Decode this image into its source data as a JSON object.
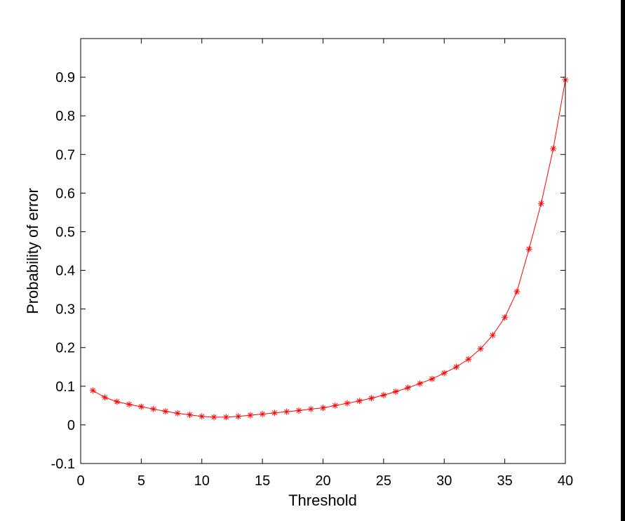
{
  "chart_data": {
    "type": "line",
    "title": "",
    "xlabel": "Threshold",
    "ylabel": "Probability of error",
    "xlim": [
      0,
      40
    ],
    "ylim": [
      -0.1,
      1.0
    ],
    "xticks": [
      0,
      5,
      10,
      15,
      20,
      25,
      30,
      35,
      40
    ],
    "xtick_labels": [
      "0",
      "5",
      "10",
      "15",
      "20",
      "25",
      "30",
      "35",
      "40"
    ],
    "yticks": [
      -0.1,
      0,
      0.1,
      0.2,
      0.3,
      0.4,
      0.5,
      0.6,
      0.7,
      0.8,
      0.9
    ],
    "ytick_labels": [
      "-0.1",
      "0",
      "0.1",
      "0.2",
      "0.3",
      "0.4",
      "0.5",
      "0.6",
      "0.7",
      "0.8",
      "0.9"
    ],
    "grid": false,
    "legend": "none",
    "series": [
      {
        "color": "#ff0000",
        "marker": "asterisk",
        "x": [
          1,
          2,
          3,
          4,
          5,
          6,
          7,
          8,
          9,
          10,
          11,
          12,
          13,
          14,
          15,
          16,
          17,
          18,
          19,
          20,
          21,
          22,
          23,
          24,
          25,
          26,
          27,
          28,
          29,
          30,
          31,
          32,
          33,
          34,
          35,
          36,
          37,
          38,
          39,
          40
        ],
        "y": [
          0.089,
          0.071,
          0.06,
          0.053,
          0.047,
          0.041,
          0.035,
          0.03,
          0.026,
          0.022,
          0.02,
          0.02,
          0.022,
          0.025,
          0.028,
          0.031,
          0.034,
          0.037,
          0.041,
          0.044,
          0.05,
          0.056,
          0.062,
          0.069,
          0.077,
          0.086,
          0.096,
          0.107,
          0.119,
          0.134,
          0.15,
          0.17,
          0.197,
          0.232,
          0.278,
          0.345,
          0.455,
          0.573,
          0.715,
          0.893
        ]
      }
    ]
  }
}
